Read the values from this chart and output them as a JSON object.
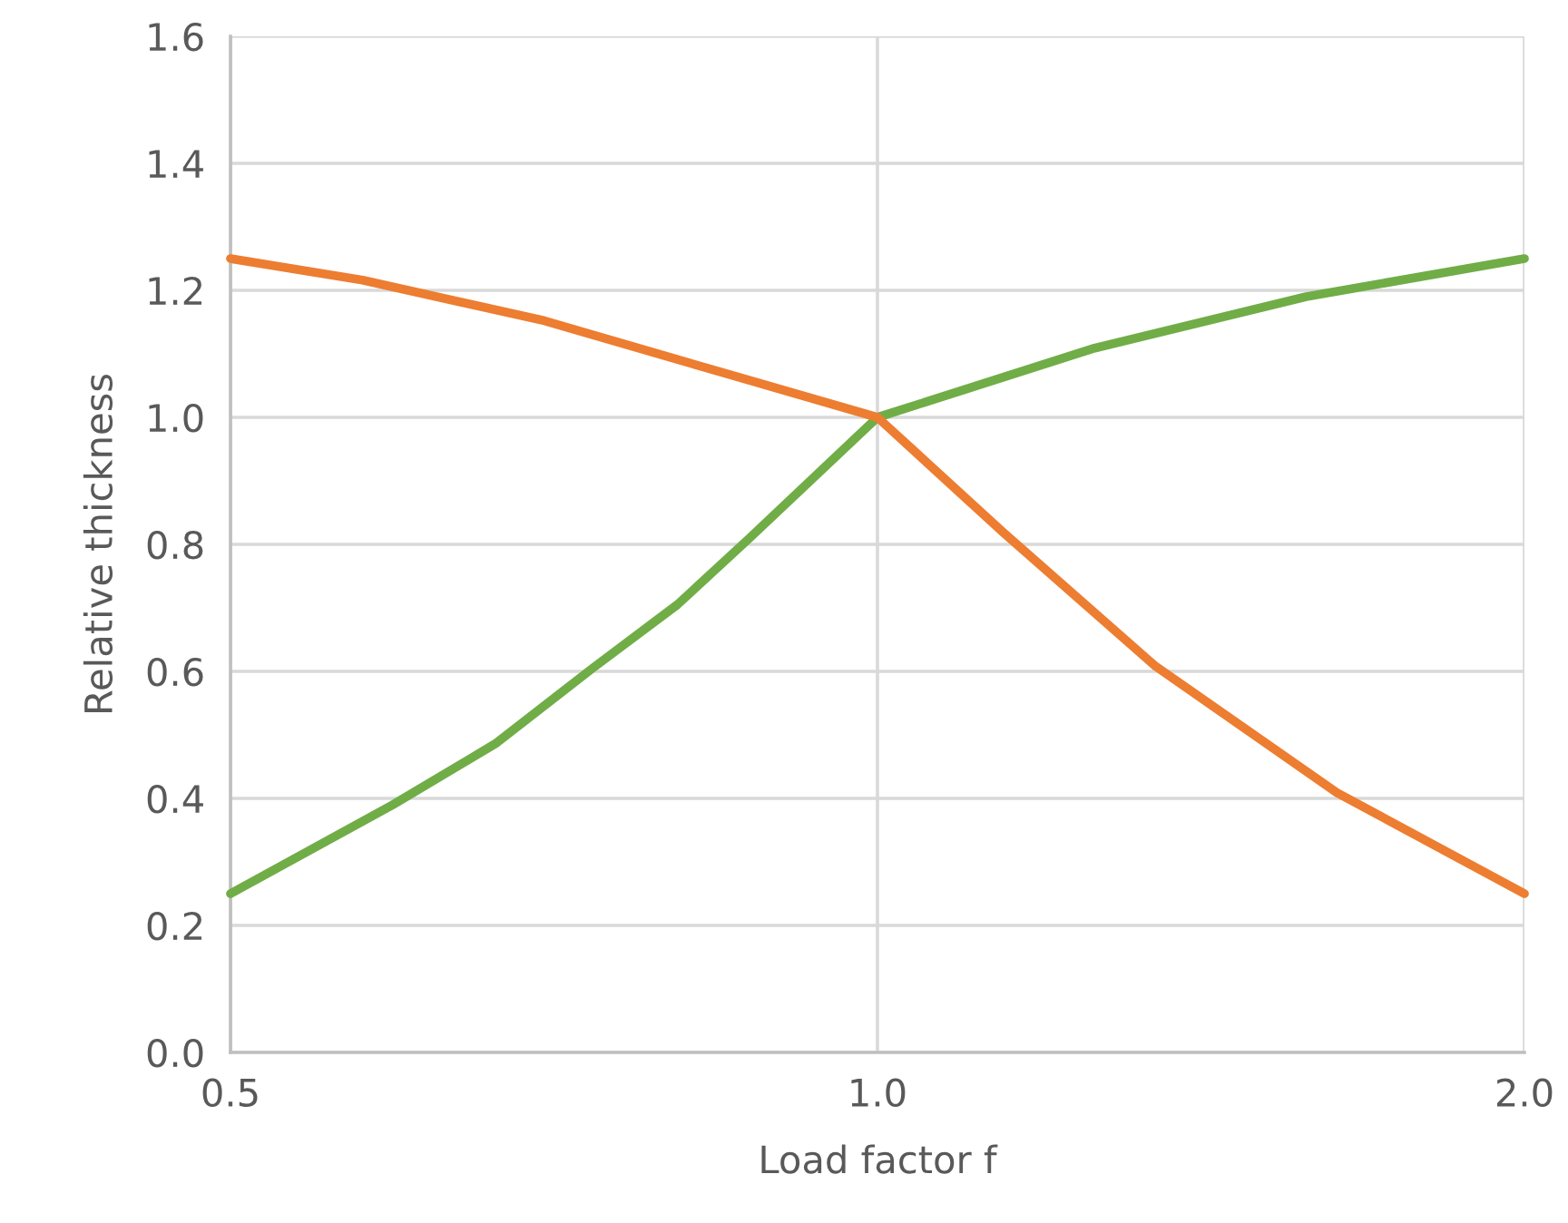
{
  "chart_data": {
    "type": "line",
    "xlabel": "Load factor f",
    "ylabel": "Relative thickness",
    "log": "x",
    "xlim": [
      0.5,
      2.0
    ],
    "xticks": [
      {
        "value": 0.5,
        "label": "0.5"
      },
      {
        "value": 1.0,
        "label": "1.0"
      },
      {
        "value": 2.0,
        "label": "2.0"
      }
    ],
    "ylim": [
      0,
      1.6
    ],
    "yticks": [
      {
        "value": 0,
        "label": "0.0"
      },
      {
        "value": 0.2,
        "label": "0.2"
      },
      {
        "value": 0.4,
        "label": "0.4"
      },
      {
        "value": 0.6,
        "label": "0.6"
      },
      {
        "value": 0.8,
        "label": "0.8"
      },
      {
        "value": 1.0,
        "label": "1.0"
      },
      {
        "value": 1.2,
        "label": "1.2"
      },
      {
        "value": 1.4,
        "label": "1.4"
      },
      {
        "value": 1.6,
        "label": "1.6"
      }
    ],
    "grid": true,
    "marker": "none",
    "line_style": "solid",
    "series": [
      {
        "color": "#70ad47",
        "x": [
          0.5,
          0.595,
          0.664,
          0.737,
          0.807,
          0.872,
          1.0,
          1.262,
          1.583,
          2.0
        ],
        "values": [
          0.25,
          0.39,
          0.486,
          0.605,
          0.705,
          0.81,
          1.0,
          1.109,
          1.19,
          1.25
        ]
      },
      {
        "color": "#ed7d31",
        "x": [
          0.5,
          0.576,
          0.7,
          0.85,
          1.0,
          1.144,
          1.346,
          1.636,
          2.0
        ],
        "values": [
          1.25,
          1.216,
          1.152,
          1.069,
          1.0,
          0.819,
          0.609,
          0.409,
          0.25
        ]
      }
    ]
  }
}
